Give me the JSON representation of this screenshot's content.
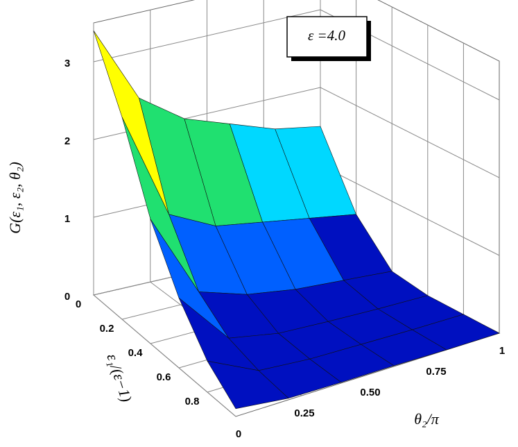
{
  "chart_data": {
    "type": "surface",
    "annotation": "ε =4.0",
    "zlabel": "G(ε₁, ε₂, θ₂)",
    "xlabel": "ε₁/(ε−1)",
    "ylabel": "θ₂/π",
    "x": [
      0,
      0.2,
      0.4,
      0.6,
      0.8,
      1
    ],
    "y": [
      0,
      0.2,
      0.4,
      0.6,
      0.8,
      1
    ],
    "z": [
      [
        3.4,
        2.4,
        2.0,
        1.8,
        1.6,
        1.5
      ],
      [
        2.6,
        1.2,
        0.9,
        0.8,
        0.7,
        0.6
      ],
      [
        1.6,
        0.5,
        0.3,
        0.2,
        0.15,
        0.1
      ],
      [
        0.9,
        0.2,
        0.08,
        0.05,
        0.03,
        0.02
      ],
      [
        0.4,
        0.08,
        0.03,
        0.02,
        0.01,
        0.01
      ],
      [
        0.1,
        0.02,
        0.01,
        0.01,
        0,
        0
      ]
    ],
    "xlim": [
      0,
      1
    ],
    "ylim": [
      0,
      1
    ],
    "zlim": [
      0,
      3.5
    ],
    "xticks": [
      0,
      0.2,
      0.4,
      0.6,
      0.8
    ],
    "yticks": [
      0,
      0.25,
      {
        "value": 0.5,
        "label": "0.50"
      },
      0.75,
      1
    ],
    "zticks": [
      0,
      1,
      2,
      3
    ],
    "grid": true,
    "colormap": [
      "#0010c0",
      "#0060ff",
      "#00d8ff",
      "#20e070",
      "#90f020",
      "#ffff00",
      "#ff9000",
      "#ff1000"
    ]
  }
}
